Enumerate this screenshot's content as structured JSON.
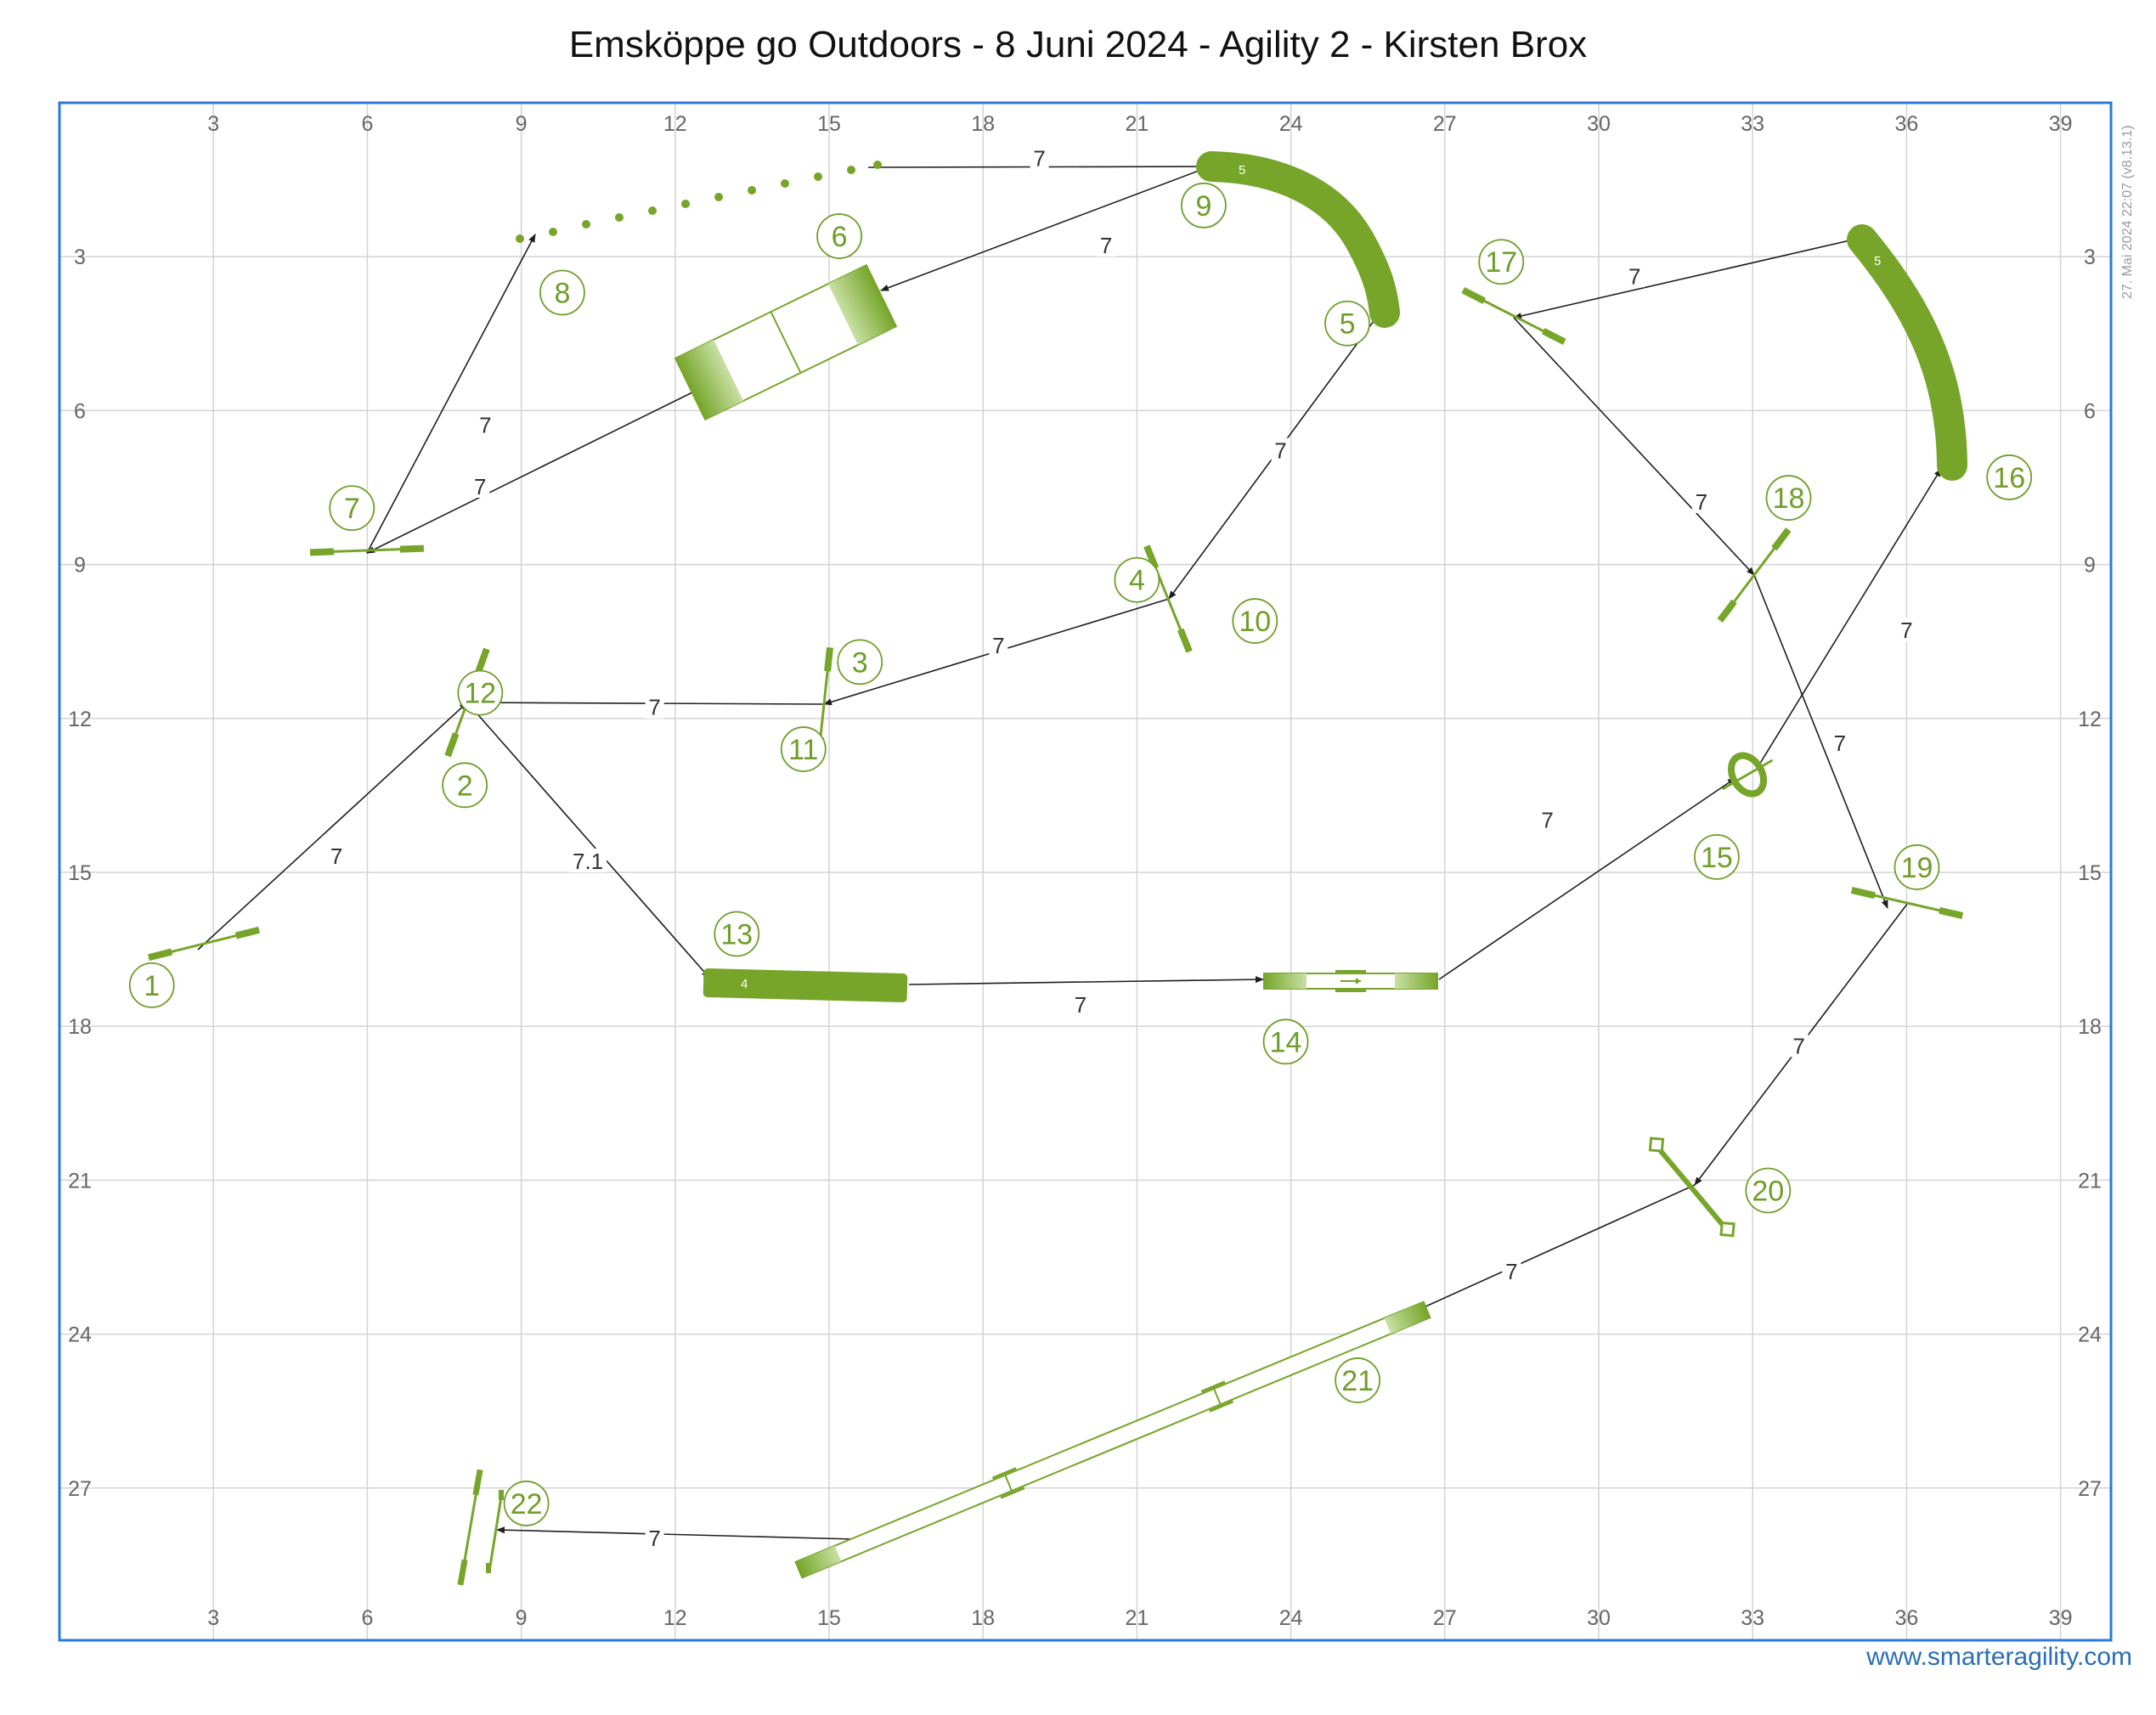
{
  "title": "Emsköppe go Outdoors - 8 Juni 2024 - Agility 2 - Kirsten Brox",
  "footer": {
    "url": "www.smarteragility.com"
  },
  "version_note": "27. Mai 2024 22:07 (v8.13.1)",
  "colors": {
    "obstacle": "#76a52a",
    "number": "#6f9e2a",
    "frame": "#2a7ad8",
    "grid": "#d3d3d3",
    "path": "#1e1e1e"
  },
  "field": {
    "width_m": 40,
    "height_m": 30,
    "x_ticks": [
      "3",
      "6",
      "9",
      "12",
      "15",
      "18",
      "21",
      "24",
      "27",
      "30",
      "33",
      "36",
      "39"
    ],
    "y_ticks": [
      "3",
      "6",
      "9",
      "12",
      "15",
      "18",
      "21",
      "24",
      "27"
    ]
  },
  "numbers": [
    {
      "label": "1",
      "x": 1.8,
      "y": 17.2
    },
    {
      "label": "2",
      "x": 7.9,
      "y": 13.3
    },
    {
      "label": "3",
      "x": 15.6,
      "y": 10.9
    },
    {
      "label": "4",
      "x": 21.0,
      "y": 9.3
    },
    {
      "label": "5",
      "x": 25.1,
      "y": 4.3
    },
    {
      "label": "6",
      "x": 15.2,
      "y": 2.6
    },
    {
      "label": "7",
      "x": 5.7,
      "y": 7.9
    },
    {
      "label": "8",
      "x": 9.8,
      "y": 3.7
    },
    {
      "label": "9",
      "x": 22.3,
      "y": 2.0
    },
    {
      "label": "10",
      "x": 23.3,
      "y": 10.1
    },
    {
      "label": "11",
      "x": 14.5,
      "y": 12.6
    },
    {
      "label": "12",
      "x": 8.2,
      "y": 11.5
    },
    {
      "label": "13",
      "x": 13.2,
      "y": 16.2
    },
    {
      "label": "14",
      "x": 23.9,
      "y": 18.3
    },
    {
      "label": "15",
      "x": 32.3,
      "y": 14.7
    },
    {
      "label": "16",
      "x": 38.0,
      "y": 7.3
    },
    {
      "label": "17",
      "x": 28.1,
      "y": 3.1
    },
    {
      "label": "18",
      "x": 33.7,
      "y": 7.7
    },
    {
      "label": "19",
      "x": 36.2,
      "y": 14.9
    },
    {
      "label": "20",
      "x": 33.3,
      "y": 21.2
    },
    {
      "label": "21",
      "x": 25.3,
      "y": 24.9
    },
    {
      "label": "22",
      "x": 9.1,
      "y": 27.3
    }
  ],
  "path_labels": [
    {
      "label": "7",
      "x": 5.4,
      "y": 14.7
    },
    {
      "label": "7.1",
      "x": 10.3,
      "y": 14.8
    },
    {
      "label": "7",
      "x": 11.6,
      "y": 11.8
    },
    {
      "label": "7",
      "x": 18.3,
      "y": 10.6
    },
    {
      "label": "7",
      "x": 23.8,
      "y": 6.8
    },
    {
      "label": "7",
      "x": 20.4,
      "y": 2.8
    },
    {
      "label": "7",
      "x": 19.1,
      "y": 1.1
    },
    {
      "label": "7",
      "x": 8.3,
      "y": 6.3
    },
    {
      "label": "7",
      "x": 8.2,
      "y": 7.5
    },
    {
      "label": "7",
      "x": 19.9,
      "y": 17.6
    },
    {
      "label": "7",
      "x": 29.0,
      "y": 14.0
    },
    {
      "label": "7",
      "x": 36.0,
      "y": 10.3
    },
    {
      "label": "7",
      "x": 30.7,
      "y": 3.4
    },
    {
      "label": "7",
      "x": 32.0,
      "y": 7.8
    },
    {
      "label": "7",
      "x": 34.7,
      "y": 12.5
    },
    {
      "label": "7",
      "x": 33.9,
      "y": 18.4
    },
    {
      "label": "7",
      "x": 28.3,
      "y": 22.8
    },
    {
      "label": "7",
      "x": 11.6,
      "y": 28.0
    }
  ],
  "tunnel_tags": [
    "5",
    "4",
    "5"
  ]
}
